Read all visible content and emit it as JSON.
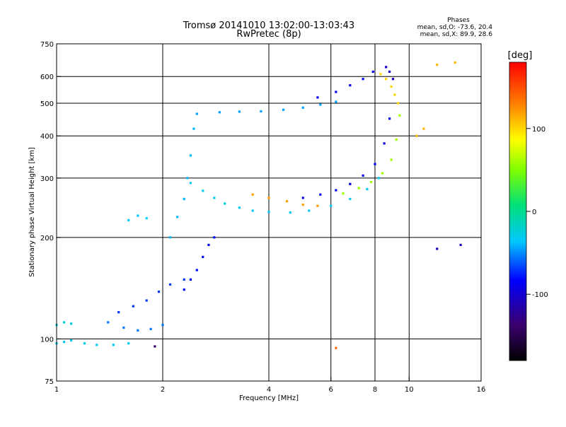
{
  "chart_data": {
    "type": "scatter",
    "title": "Tromsø 20141010 13:02:00-13:03:43",
    "subtitle": "RwPretec (8p)",
    "xlabel": "Frequency [MHz]",
    "ylabel": "Stationary phase Virtual Height [km]",
    "x_scale": "log",
    "y_scale": "log",
    "xlim": [
      1,
      16
    ],
    "ylim": [
      75,
      750
    ],
    "x_ticks": [
      1,
      2,
      4,
      6,
      8,
      10,
      16
    ],
    "y_ticks": [
      75,
      100,
      200,
      300,
      400,
      500,
      600,
      750
    ],
    "x_grid": [
      2,
      4,
      6,
      8,
      10
    ],
    "y_grid": [
      100,
      200,
      300,
      400,
      500,
      600
    ],
    "grid": true,
    "stats": {
      "heading": "Phases",
      "line_o": "mean, sd,O: -73.6, 20.4",
      "line_x": "mean, sd,X: 89.9, 28.6"
    },
    "colorbar": {
      "label": "[deg]",
      "range": [
        -180,
        180
      ],
      "ticks": [
        100,
        0,
        -100
      ],
      "colormap": "rainbow"
    },
    "traces": [
      {
        "name": "",
        "phase": -30,
        "x": [
          1.0,
          1.05,
          1.1,
          1.2,
          1.3,
          1.45,
          1.6
        ],
        "y": [
          97,
          98,
          99,
          97,
          96,
          96,
          97
        ]
      },
      {
        "name": "",
        "phase": -25,
        "x": [
          1.0,
          1.05,
          1.1
        ],
        "y": [
          110,
          112,
          111
        ]
      },
      {
        "name": "",
        "phase": -55,
        "x": [
          1.4,
          1.55,
          1.7,
          1.85,
          2.0
        ],
        "y": [
          112,
          108,
          106,
          107,
          110
        ]
      },
      {
        "name": "",
        "phase": -70,
        "x": [
          1.5,
          1.65,
          1.8,
          1.95,
          2.1,
          2.3
        ],
        "y": [
          120,
          125,
          130,
          138,
          145,
          150
        ]
      },
      {
        "name": "",
        "phase": -35,
        "x": [
          1.6,
          1.7,
          1.8
        ],
        "y": [
          225,
          232,
          228
        ]
      },
      {
        "name": "",
        "phase": -40,
        "x": [
          2.1,
          2.2,
          2.3,
          2.35,
          2.4,
          2.45
        ],
        "y": [
          200,
          230,
          260,
          300,
          350,
          420
        ]
      },
      {
        "name": "",
        "phase": -80,
        "x": [
          2.3,
          2.4,
          2.5,
          2.6,
          2.7,
          2.8
        ],
        "y": [
          140,
          150,
          160,
          175,
          190,
          200
        ]
      },
      {
        "name": "",
        "phase": -30,
        "x": [
          2.4,
          2.6,
          2.8,
          3.0,
          3.3,
          3.6,
          4.0,
          4.6,
          5.2,
          6.0,
          6.8,
          7.6,
          8.2
        ],
        "y": [
          290,
          275,
          262,
          252,
          245,
          240,
          238,
          237,
          240,
          248,
          260,
          278,
          300
        ]
      },
      {
        "name": "",
        "phase": -45,
        "x": [
          2.5,
          2.9,
          3.3,
          3.8,
          4.4,
          5.0,
          5.6,
          6.2
        ],
        "y": [
          465,
          470,
          472,
          473,
          478,
          485,
          495,
          505
        ]
      },
      {
        "name": "",
        "phase": -85,
        "x": [
          5.5,
          6.2,
          6.8,
          7.4,
          7.9
        ],
        "y": [
          520,
          540,
          565,
          590,
          620
        ]
      },
      {
        "name": "",
        "phase": 120,
        "x": [
          3.6,
          4.0,
          4.5,
          5.0,
          5.5
        ],
        "y": [
          268,
          262,
          256,
          250,
          248
        ]
      },
      {
        "name": "",
        "phase": -90,
        "x": [
          5.0,
          5.6,
          6.2,
          6.8,
          7.4,
          8.0,
          8.5,
          8.8
        ],
        "y": [
          262,
          268,
          276,
          288,
          305,
          330,
          380,
          450
        ]
      },
      {
        "name": "",
        "phase": 60,
        "x": [
          6.5,
          7.2,
          7.8,
          8.4,
          8.9,
          9.2,
          9.4
        ],
        "y": [
          270,
          280,
          292,
          310,
          340,
          390,
          460
        ]
      },
      {
        "name": "",
        "phase": 100,
        "x": [
          8.3,
          8.6,
          8.9,
          9.1,
          9.3
        ],
        "y": [
          610,
          590,
          560,
          530,
          500
        ]
      },
      {
        "name": "",
        "phase": -100,
        "x": [
          8.6,
          8.8,
          9.0
        ],
        "y": [
          640,
          620,
          590
        ]
      },
      {
        "name": "",
        "phase": 110,
        "x": [
          10.5,
          11.0,
          12.0,
          13.5
        ],
        "y": [
          400,
          420,
          650,
          660
        ]
      },
      {
        "name": "",
        "phase": -110,
        "x": [
          12.0,
          14.0
        ],
        "y": [
          185,
          190
        ]
      },
      {
        "name": "",
        "phase": 140,
        "x": [
          6.2
        ],
        "y": [
          94
        ]
      },
      {
        "name": "",
        "phase": -140,
        "x": [
          1.9
        ],
        "y": [
          95
        ]
      }
    ]
  }
}
